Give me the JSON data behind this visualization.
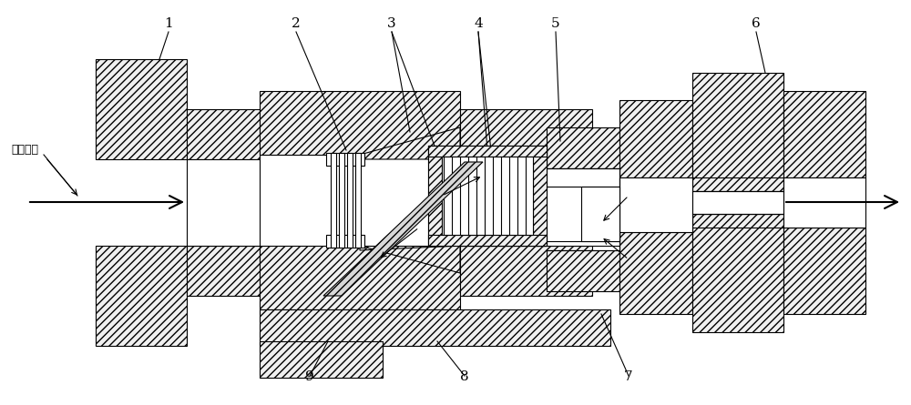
{
  "bg_color": "#ffffff",
  "lc": "#000000",
  "fc_hatch": "#f0f0f0",
  "figsize": [
    10.0,
    4.45
  ],
  "dpi": 100
}
